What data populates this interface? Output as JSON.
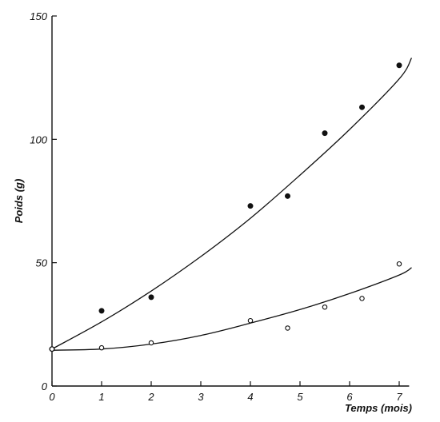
{
  "chart_data": {
    "type": "scatter",
    "xlabel": "Temps (mois)",
    "ylabel": "Poids (g)",
    "xlim": [
      0,
      7.5
    ],
    "ylim": [
      0,
      150
    ],
    "x_ticks": [
      0,
      1,
      2,
      3,
      4,
      5,
      6,
      7
    ],
    "y_ticks": [
      0,
      50,
      100,
      150
    ],
    "x_tick_labels": [
      "0",
      "1",
      "2",
      "3",
      "4",
      "5",
      "6",
      "7"
    ],
    "y_tick_labels": [
      "0",
      "50",
      "100",
      "150"
    ],
    "grid": false,
    "legend": "none",
    "series": [
      {
        "marker": "filled-circle",
        "points": [
          {
            "x": 0,
            "y": 15
          },
          {
            "x": 1,
            "y": 30.5
          },
          {
            "x": 2,
            "y": 36
          },
          {
            "x": 4,
            "y": 73
          },
          {
            "x": 4.75,
            "y": 77
          },
          {
            "x": 5.5,
            "y": 102.5
          },
          {
            "x": 6.25,
            "y": 113
          },
          {
            "x": 7,
            "y": 130
          }
        ],
        "fit_curve": [
          {
            "x": 0,
            "y": 15
          },
          {
            "x": 1,
            "y": 26
          },
          {
            "x": 2,
            "y": 38.5
          },
          {
            "x": 3,
            "y": 52.5
          },
          {
            "x": 4,
            "y": 68
          },
          {
            "x": 5,
            "y": 85.5
          },
          {
            "x": 6,
            "y": 104
          },
          {
            "x": 7,
            "y": 124.5
          },
          {
            "x": 7.25,
            "y": 133
          }
        ]
      },
      {
        "marker": "open-circle",
        "points": [
          {
            "x": 0,
            "y": 15
          },
          {
            "x": 1,
            "y": 15.5
          },
          {
            "x": 2,
            "y": 17.5
          },
          {
            "x": 4,
            "y": 26.5
          },
          {
            "x": 4.75,
            "y": 23.5
          },
          {
            "x": 5.5,
            "y": 32
          },
          {
            "x": 6.25,
            "y": 35.5
          },
          {
            "x": 7,
            "y": 49.5
          }
        ],
        "fit_curve": [
          {
            "x": 0,
            "y": 14.5
          },
          {
            "x": 1,
            "y": 15
          },
          {
            "x": 2,
            "y": 17
          },
          {
            "x": 3,
            "y": 20.5
          },
          {
            "x": 4,
            "y": 25.5
          },
          {
            "x": 5,
            "y": 31
          },
          {
            "x": 6,
            "y": 37.5
          },
          {
            "x": 7,
            "y": 45
          },
          {
            "x": 7.25,
            "y": 48
          }
        ]
      }
    ]
  }
}
